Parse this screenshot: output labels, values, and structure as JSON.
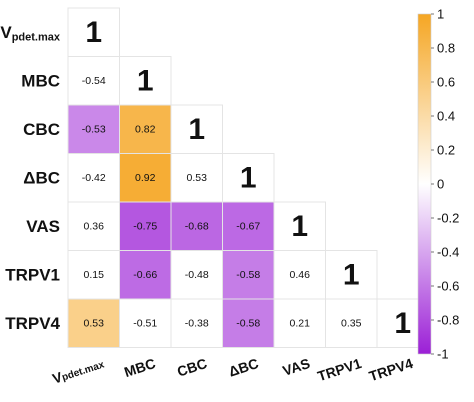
{
  "chart_data": {
    "type": "heatmap",
    "variables": [
      "V",
      "MBC",
      "CBC",
      "ΔBC",
      "VAS",
      "TRPV1",
      "TRPV4"
    ],
    "variable_subscripts": [
      "pdet.max",
      "",
      "",
      "",
      "",
      "",
      ""
    ],
    "matrix": [
      [
        1
      ],
      [
        -0.54,
        1
      ],
      [
        -0.53,
        0.82,
        1
      ],
      [
        -0.42,
        0.92,
        0.53,
        1
      ],
      [
        0.36,
        -0.75,
        -0.68,
        -0.67,
        1
      ],
      [
        0.15,
        -0.66,
        -0.48,
        -0.58,
        0.46,
        1
      ],
      [
        0.53,
        -0.51,
        -0.38,
        -0.58,
        0.21,
        0.35,
        1
      ]
    ],
    "highlighted": [
      [
        2,
        0
      ],
      [
        2,
        1
      ],
      [
        3,
        1
      ],
      [
        4,
        1
      ],
      [
        4,
        2
      ],
      [
        4,
        3
      ],
      [
        5,
        1
      ],
      [
        5,
        3
      ],
      [
        6,
        0
      ],
      [
        6,
        3
      ]
    ],
    "diagonal_label": "1",
    "colorbar": {
      "range": [
        -1,
        1
      ],
      "ticks": [
        "1",
        "0.8",
        "0.6",
        "0.4",
        "0.2",
        "0",
        "-0.2",
        "-0.4",
        "-0.6",
        "-0.8",
        "-1"
      ],
      "colors": {
        "positive": "#f5a623",
        "zero": "#ffffff",
        "negative": "#9b1fd6"
      }
    }
  }
}
